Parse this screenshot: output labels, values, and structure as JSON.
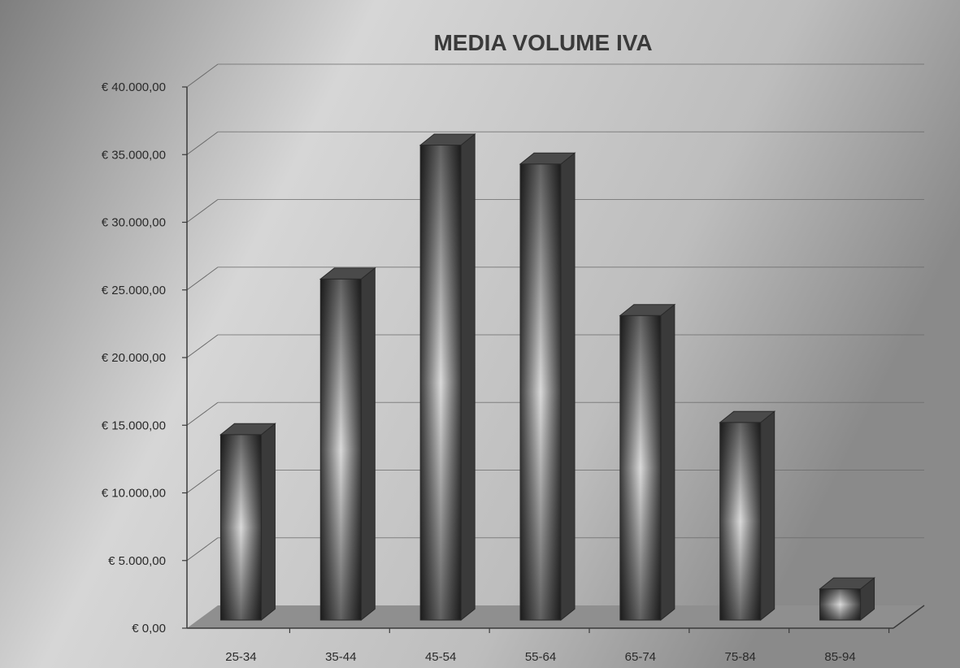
{
  "chart_data": {
    "type": "bar",
    "title": "MEDIA VOLUME IVA",
    "xlabel": "",
    "ylabel": "",
    "categories": [
      "25-34",
      "35-44",
      "45-54",
      "55-64",
      "65-74",
      "75-84",
      "85-94"
    ],
    "values": [
      13700,
      25200,
      35100,
      33700,
      22500,
      14600,
      2300
    ],
    "ylim": [
      0,
      40000
    ],
    "yticks": [
      0,
      5000,
      10000,
      15000,
      20000,
      25000,
      30000,
      35000,
      40000
    ],
    "ytick_labels": [
      "€ 0,00",
      "€ 5.000,00",
      "€ 10.000,00",
      "€ 15.000,00",
      "€ 20.000,00",
      "€ 25.000,00",
      "€ 30.000,00",
      "€ 35.000,00",
      "€ 40.000,00"
    ],
    "grid": true,
    "three_d": true,
    "colors": {
      "bar_front_dark": "#3c3c3c",
      "bar_front_light": "#d8d8d8",
      "bar_side": "#3a3a3a",
      "bar_top": "#4a4a4a",
      "floor": "#8f8f8f",
      "grid": "#6a6a6a",
      "axis": "#3a3a3a"
    }
  }
}
